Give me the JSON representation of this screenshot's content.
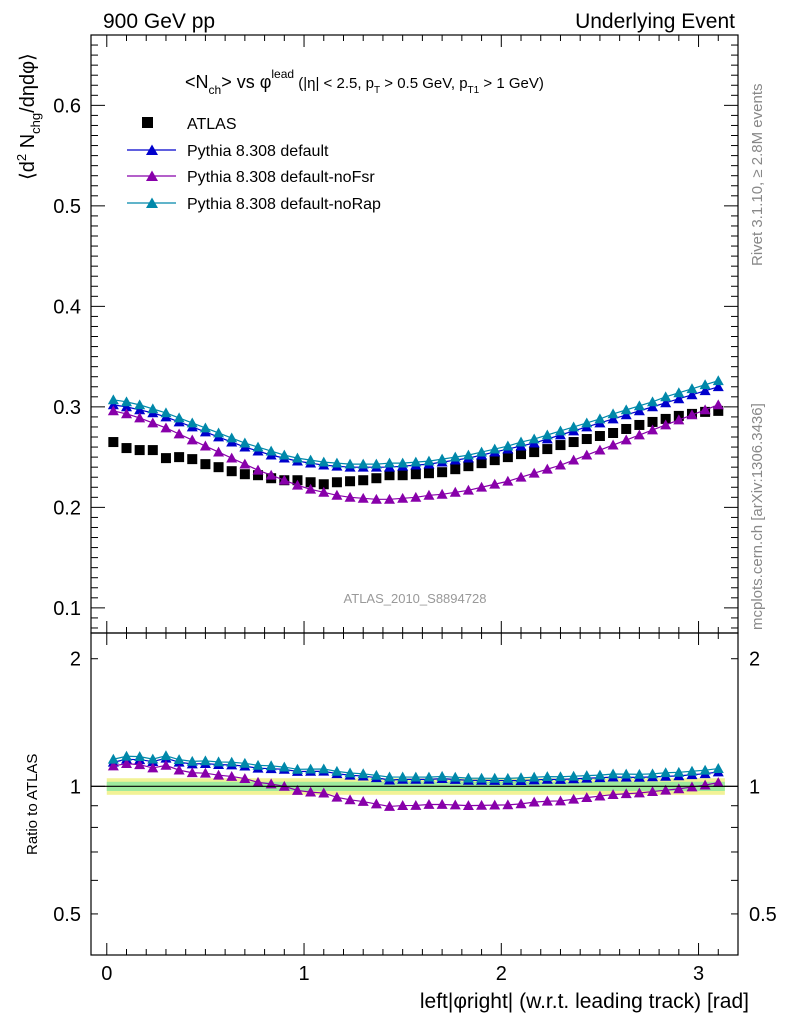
{
  "header": {
    "left": "900 GeV pp",
    "right": "Underlying Event"
  },
  "side": {
    "rivet": "Rivet 3.1.10, ≥ 2.8M events",
    "mcplots": "mcplots.cern.ch [arXiv:1306.3436]"
  },
  "chart_data": {
    "type": "scatter",
    "title": "<N_ch> vs φ^lead (|η| < 2.5, p_T > 0.5 GeV, p_T1 > 1 GeV)",
    "analysis_label": "ATLAS_2010_S8894728",
    "xlabel": "left|φright| (w.r.t. leading track) [rad]",
    "ylabel": "⟨d² N_chg/dηdφ⟩",
    "ratio_ylabel": "Ratio to ATLAS",
    "xlim": [
      -0.08,
      3.2
    ],
    "ylim": [
      0.075,
      0.67
    ],
    "ratio_ylim": [
      0.4,
      2.3
    ],
    "ratio_log": true,
    "x_ticks": [
      "0",
      "1",
      "2",
      "3"
    ],
    "y_ticks": [
      "0.1",
      "0.2",
      "0.3",
      "0.4",
      "0.5",
      "0.6"
    ],
    "ratio_ticks": [
      "0.5",
      "1",
      "2"
    ],
    "legend_position": "top-left",
    "colors": {
      "ATLAS": "#000000",
      "Pythia 8.308 default": "#0000cc",
      "Pythia 8.308 default-noFsr": "#8800aa",
      "Pythia 8.308 default-noRap": "#0088aa",
      "band_inner": "#9eea9e",
      "band_outer": "#f2f296"
    },
    "x": [
      0.0333,
      0.1,
      0.1667,
      0.2333,
      0.3,
      0.3667,
      0.4333,
      0.5,
      0.5667,
      0.6333,
      0.7,
      0.7667,
      0.8333,
      0.9,
      0.9667,
      1.0333,
      1.1,
      1.1667,
      1.2333,
      1.3,
      1.3667,
      1.4333,
      1.5,
      1.5667,
      1.6333,
      1.7,
      1.7667,
      1.8333,
      1.9,
      1.9667,
      2.0333,
      2.1,
      2.1667,
      2.2333,
      2.3,
      2.3667,
      2.4333,
      2.5,
      2.5667,
      2.6333,
      2.7,
      2.7667,
      2.8333,
      2.9,
      2.9667,
      3.0333,
      3.1
    ],
    "series": [
      {
        "name": "ATLAS",
        "marker": "square",
        "values": [
          0.265,
          0.259,
          0.257,
          0.257,
          0.249,
          0.25,
          0.248,
          0.243,
          0.24,
          0.236,
          0.233,
          0.232,
          0.229,
          0.227,
          0.227,
          0.225,
          0.223,
          0.225,
          0.226,
          0.227,
          0.229,
          0.232,
          0.232,
          0.233,
          0.234,
          0.235,
          0.238,
          0.241,
          0.244,
          0.247,
          0.25,
          0.253,
          0.255,
          0.258,
          0.262,
          0.265,
          0.268,
          0.271,
          0.274,
          0.278,
          0.282,
          0.285,
          0.288,
          0.291,
          0.293,
          0.295,
          0.296
        ]
      },
      {
        "name": "Pythia 8.308 default",
        "marker": "triangle",
        "values": [
          0.302,
          0.3,
          0.297,
          0.294,
          0.29,
          0.285,
          0.28,
          0.275,
          0.27,
          0.265,
          0.26,
          0.256,
          0.252,
          0.249,
          0.246,
          0.244,
          0.242,
          0.241,
          0.24,
          0.24,
          0.24,
          0.24,
          0.241,
          0.242,
          0.243,
          0.245,
          0.247,
          0.249,
          0.252,
          0.255,
          0.258,
          0.261,
          0.264,
          0.268,
          0.272,
          0.276,
          0.28,
          0.284,
          0.288,
          0.292,
          0.296,
          0.3,
          0.304,
          0.308,
          0.312,
          0.316,
          0.32
        ]
      },
      {
        "name": "Pythia 8.308 default-noFsr",
        "marker": "triangle",
        "values": [
          0.296,
          0.293,
          0.289,
          0.284,
          0.279,
          0.273,
          0.267,
          0.261,
          0.255,
          0.249,
          0.243,
          0.237,
          0.232,
          0.227,
          0.222,
          0.218,
          0.215,
          0.212,
          0.21,
          0.209,
          0.208,
          0.208,
          0.209,
          0.21,
          0.212,
          0.213,
          0.215,
          0.217,
          0.22,
          0.223,
          0.226,
          0.23,
          0.234,
          0.238,
          0.242,
          0.247,
          0.252,
          0.257,
          0.262,
          0.267,
          0.272,
          0.277,
          0.282,
          0.287,
          0.292,
          0.297,
          0.302
        ]
      },
      {
        "name": "Pythia 8.308 default-noRap",
        "marker": "triangle",
        "values": [
          0.307,
          0.305,
          0.302,
          0.298,
          0.294,
          0.289,
          0.284,
          0.279,
          0.274,
          0.269,
          0.264,
          0.26,
          0.256,
          0.252,
          0.249,
          0.247,
          0.245,
          0.244,
          0.243,
          0.243,
          0.243,
          0.244,
          0.244,
          0.245,
          0.246,
          0.248,
          0.25,
          0.252,
          0.255,
          0.258,
          0.261,
          0.265,
          0.268,
          0.272,
          0.276,
          0.28,
          0.284,
          0.288,
          0.293,
          0.297,
          0.301,
          0.305,
          0.31,
          0.314,
          0.318,
          0.322,
          0.326
        ]
      }
    ]
  }
}
